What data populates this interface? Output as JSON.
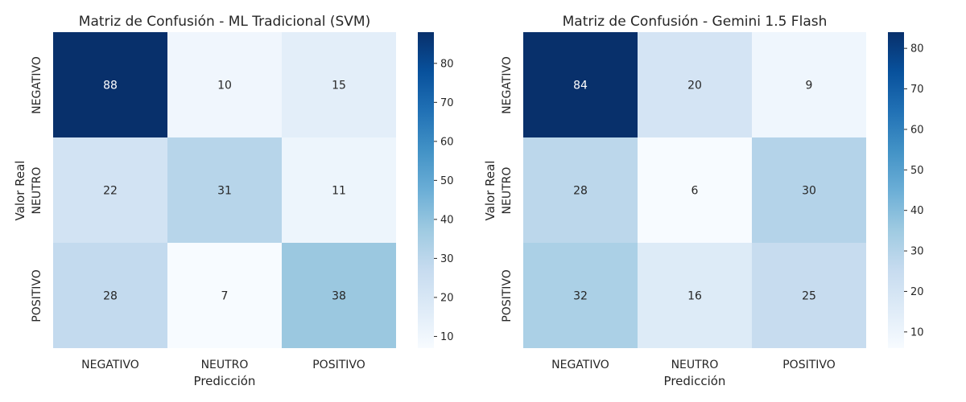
{
  "chart_data": [
    {
      "type": "heatmap",
      "title": "Matriz de Confusión - ML Tradicional (SVM)",
      "xlabel": "Predicción",
      "ylabel": "Valor Real",
      "x_categories": [
        "NEGATIVO",
        "NEUTRO",
        "POSITIVO"
      ],
      "y_categories": [
        "NEGATIVO",
        "NEUTRO",
        "POSITIVO"
      ],
      "values": [
        [
          88,
          10,
          15
        ],
        [
          22,
          31,
          11
        ],
        [
          28,
          7,
          38
        ]
      ],
      "colormap": "Blues",
      "colorbar": {
        "range": [
          7,
          88
        ],
        "ticks": [
          10,
          20,
          30,
          40,
          50,
          60,
          70,
          80
        ]
      }
    },
    {
      "type": "heatmap",
      "title": "Matriz de Confusión - Gemini 1.5 Flash",
      "xlabel": "Predicción",
      "ylabel": "Valor Real",
      "x_categories": [
        "NEGATIVO",
        "NEUTRO",
        "POSITIVO"
      ],
      "y_categories": [
        "NEGATIVO",
        "NEUTRO",
        "POSITIVO"
      ],
      "values": [
        [
          84,
          20,
          9
        ],
        [
          28,
          6,
          30
        ],
        [
          32,
          16,
          25
        ]
      ],
      "colormap": "Blues",
      "colorbar": {
        "range": [
          6,
          84
        ],
        "ticks": [
          10,
          20,
          30,
          40,
          50,
          60,
          70,
          80
        ]
      }
    }
  ]
}
